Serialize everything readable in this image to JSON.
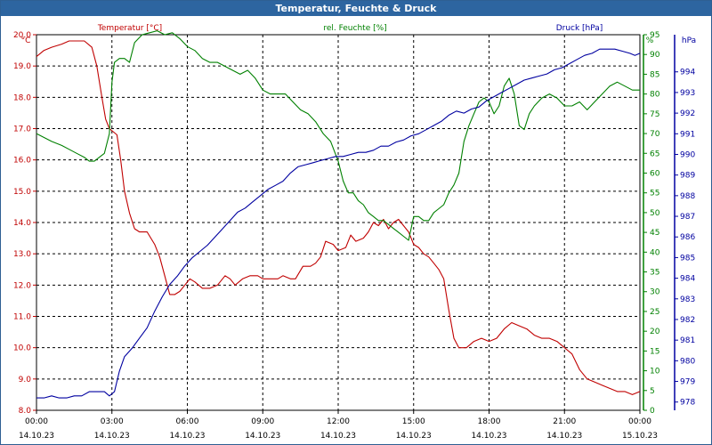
{
  "window": {
    "title": "Temperatur, Feuchte & Druck"
  },
  "colors": {
    "temperature": "#c00000",
    "humidity": "#008000",
    "pressure": "#0000a0",
    "grid": "#000000",
    "titlebar": "#2d65a0"
  },
  "chart_data": {
    "type": "line",
    "title": "Temperatur, Feuchte & Druck",
    "grid": true,
    "x_range": [
      "14.10.23 00:00",
      "15.10.23 00:00"
    ],
    "x_ticks": [
      {
        "time": "00:00",
        "date": "14.10.23"
      },
      {
        "time": "03:00",
        "date": "14.10.23"
      },
      {
        "time": "06:00",
        "date": "14.10.23"
      },
      {
        "time": "09:00",
        "date": "14.10.23"
      },
      {
        "time": "12:00",
        "date": "14.10.23"
      },
      {
        "time": "15:00",
        "date": "14.10.23"
      },
      {
        "time": "18:00",
        "date": "14.10.23"
      },
      {
        "time": "21:00",
        "date": "14.10.23"
      },
      {
        "time": "00:00",
        "date": "15.10.23"
      }
    ],
    "axes": {
      "temperature": {
        "label": "Temperatur [°C]",
        "unit": "°C",
        "range": [
          8.0,
          20.0
        ],
        "ticks": [
          "8.0",
          "9.0",
          "10.0",
          "11.0",
          "12.0",
          "13.0",
          "14.0",
          "15.0",
          "16.0",
          "17.0",
          "18.0",
          "19.0",
          "20.0"
        ]
      },
      "humidity": {
        "label": "rel. Feuchte [%]",
        "unit": "%",
        "range": [
          0,
          95
        ],
        "ticks": [
          "0",
          "5",
          "10",
          "15",
          "20",
          "25",
          "30",
          "35",
          "40",
          "45",
          "50",
          "55",
          "60",
          "65",
          "70",
          "75",
          "80",
          "85",
          "90",
          "95"
        ]
      },
      "pressure": {
        "label": "Druck [hPa]",
        "unit": "hPa",
        "range": [
          977.6,
          995.8
        ],
        "ticks": [
          "978",
          "979",
          "980",
          "981",
          "982",
          "983",
          "984",
          "985",
          "986",
          "987",
          "988",
          "989",
          "990",
          "991",
          "992",
          "993",
          "994"
        ]
      }
    },
    "series": [
      {
        "name": "Temperatur [°C]",
        "axis": "temperature",
        "x_hours": [
          0,
          0.3,
          0.6,
          1.0,
          1.3,
          1.6,
          1.9,
          2.2,
          2.4,
          2.6,
          2.75,
          2.9,
          3.05,
          3.2,
          3.35,
          3.5,
          3.7,
          3.9,
          4.1,
          4.4,
          4.7,
          4.9,
          5.1,
          5.3,
          5.5,
          5.7,
          5.9,
          6.1,
          6.3,
          6.6,
          6.9,
          7.2,
          7.5,
          7.7,
          7.9,
          8.2,
          8.5,
          8.8,
          9.0,
          9.3,
          9.6,
          9.8,
          10.1,
          10.3,
          10.6,
          10.9,
          11.1,
          11.3,
          11.5,
          11.8,
          12.0,
          12.3,
          12.5,
          12.7,
          13.0,
          13.2,
          13.4,
          13.6,
          13.8,
          14.0,
          14.2,
          14.4,
          14.6,
          14.8,
          15.0,
          15.2,
          15.4,
          15.6,
          15.8,
          16.0,
          16.2,
          16.4,
          16.6,
          16.8,
          17.1,
          17.4,
          17.7,
          18.0,
          18.3,
          18.6,
          18.9,
          19.2,
          19.5,
          19.8,
          20.1,
          20.4,
          20.7,
          21.0,
          21.3,
          21.6,
          21.9,
          22.2,
          22.5,
          22.8,
          23.1,
          23.4,
          23.7,
          24.0
        ],
        "values": [
          19.3,
          19.5,
          19.6,
          19.7,
          19.8,
          19.8,
          19.8,
          19.6,
          19.0,
          18.0,
          17.3,
          17.0,
          16.9,
          16.8,
          16.0,
          15.0,
          14.3,
          13.8,
          13.7,
          13.7,
          13.3,
          12.9,
          12.3,
          11.7,
          11.7,
          11.8,
          12.0,
          12.2,
          12.1,
          11.9,
          11.9,
          12.0,
          12.3,
          12.2,
          12.0,
          12.2,
          12.3,
          12.3,
          12.2,
          12.2,
          12.2,
          12.3,
          12.2,
          12.2,
          12.6,
          12.6,
          12.7,
          12.9,
          13.4,
          13.3,
          13.1,
          13.2,
          13.6,
          13.4,
          13.5,
          13.7,
          14.0,
          13.9,
          14.1,
          13.8,
          14.0,
          14.1,
          13.9,
          13.7,
          13.3,
          13.2,
          13.0,
          12.9,
          12.7,
          12.5,
          12.2,
          11.2,
          10.3,
          10.0,
          10.0,
          10.2,
          10.3,
          10.2,
          10.3,
          10.6,
          10.8,
          10.7,
          10.6,
          10.4,
          10.3,
          10.3,
          10.2,
          10.0,
          9.8,
          9.3,
          9.0,
          8.9,
          8.8,
          8.7,
          8.6,
          8.6,
          8.5,
          8.6
        ]
      },
      {
        "name": "rel. Feuchte [%]",
        "axis": "humidity",
        "x_hours": [
          0,
          0.3,
          0.6,
          1.0,
          1.3,
          1.6,
          1.9,
          2.1,
          2.3,
          2.5,
          2.7,
          2.9,
          3.0,
          3.1,
          3.3,
          3.5,
          3.7,
          3.9,
          4.2,
          4.5,
          4.8,
          5.1,
          5.4,
          5.7,
          6.0,
          6.3,
          6.6,
          6.9,
          7.2,
          7.5,
          7.8,
          8.1,
          8.4,
          8.7,
          9.0,
          9.3,
          9.6,
          9.9,
          10.2,
          10.5,
          10.8,
          11.1,
          11.4,
          11.7,
          12.0,
          12.2,
          12.4,
          12.6,
          12.8,
          13.0,
          13.2,
          13.4,
          13.6,
          13.8,
          14.0,
          14.2,
          14.4,
          14.6,
          14.8,
          15.0,
          15.2,
          15.4,
          15.6,
          15.8,
          16.0,
          16.2,
          16.4,
          16.6,
          16.8,
          17.0,
          17.2,
          17.4,
          17.6,
          17.8,
          18.0,
          18.2,
          18.4,
          18.6,
          18.8,
          19.0,
          19.2,
          19.4,
          19.6,
          19.8,
          20.1,
          20.4,
          20.7,
          21.0,
          21.3,
          21.6,
          21.9,
          22.2,
          22.5,
          22.8,
          23.1,
          23.4,
          23.7,
          24.0
        ],
        "values": [
          70,
          69,
          68,
          67,
          66,
          65,
          64,
          63,
          63,
          64,
          65,
          70,
          83,
          88,
          89,
          89,
          88,
          93,
          95,
          95.5,
          96,
          95,
          95.5,
          94,
          92,
          91,
          89,
          88,
          88,
          87,
          86,
          85,
          86,
          84,
          81,
          80,
          80,
          80,
          78,
          76,
          75,
          73,
          70,
          68,
          63,
          58,
          55,
          55,
          53,
          52,
          50,
          49,
          48,
          48,
          47,
          46,
          45,
          44,
          43,
          49,
          49,
          48,
          48,
          50,
          51,
          52,
          55,
          57,
          60,
          68,
          72,
          75,
          78,
          79,
          78,
          75,
          77,
          82,
          84,
          80,
          72,
          71,
          75,
          77,
          79,
          80,
          79,
          77,
          77,
          78,
          76,
          78,
          80,
          82,
          83,
          82,
          81,
          81
        ]
      },
      {
        "name": "Druck [hPa]",
        "axis": "pressure",
        "x_hours": [
          0,
          0.3,
          0.6,
          0.9,
          1.2,
          1.5,
          1.8,
          2.1,
          2.4,
          2.7,
          2.9,
          3.1,
          3.3,
          3.5,
          3.8,
          4.1,
          4.4,
          4.7,
          5.0,
          5.3,
          5.6,
          5.9,
          6.2,
          6.5,
          6.8,
          7.1,
          7.4,
          7.7,
          8.0,
          8.3,
          8.6,
          8.9,
          9.2,
          9.5,
          9.8,
          10.1,
          10.4,
          10.7,
          11.0,
          11.3,
          11.6,
          11.9,
          12.2,
          12.5,
          12.8,
          13.1,
          13.4,
          13.7,
          14.0,
          14.3,
          14.6,
          14.9,
          15.2,
          15.5,
          15.8,
          16.1,
          16.4,
          16.7,
          17.0,
          17.3,
          17.6,
          17.9,
          18.2,
          18.5,
          18.8,
          19.1,
          19.4,
          19.7,
          20.0,
          20.3,
          20.6,
          20.9,
          21.2,
          21.5,
          21.8,
          22.1,
          22.4,
          22.7,
          23.0,
          23.3,
          23.6,
          23.8,
          24.0
        ],
        "values": [
          978.2,
          978.2,
          978.3,
          978.2,
          978.2,
          978.3,
          978.3,
          978.5,
          978.5,
          978.5,
          978.3,
          978.5,
          979.5,
          980.2,
          980.6,
          981.1,
          981.6,
          982.4,
          983.1,
          983.7,
          984.1,
          984.6,
          985.0,
          985.3,
          985.6,
          986.0,
          986.4,
          986.8,
          987.2,
          987.4,
          987.7,
          988.0,
          988.3,
          988.5,
          988.7,
          989.1,
          989.4,
          989.5,
          989.6,
          989.7,
          989.8,
          989.9,
          989.9,
          990.0,
          990.1,
          990.1,
          990.2,
          990.4,
          990.4,
          990.6,
          990.7,
          990.9,
          991.0,
          991.2,
          991.4,
          991.6,
          991.9,
          992.1,
          992.0,
          992.2,
          992.3,
          992.6,
          992.8,
          993.0,
          993.2,
          993.4,
          993.6,
          993.7,
          993.8,
          993.9,
          994.1,
          994.2,
          994.4,
          994.6,
          994.8,
          994.9,
          995.1,
          995.1,
          995.1,
          995.0,
          994.9,
          994.8,
          994.9
        ]
      }
    ]
  }
}
